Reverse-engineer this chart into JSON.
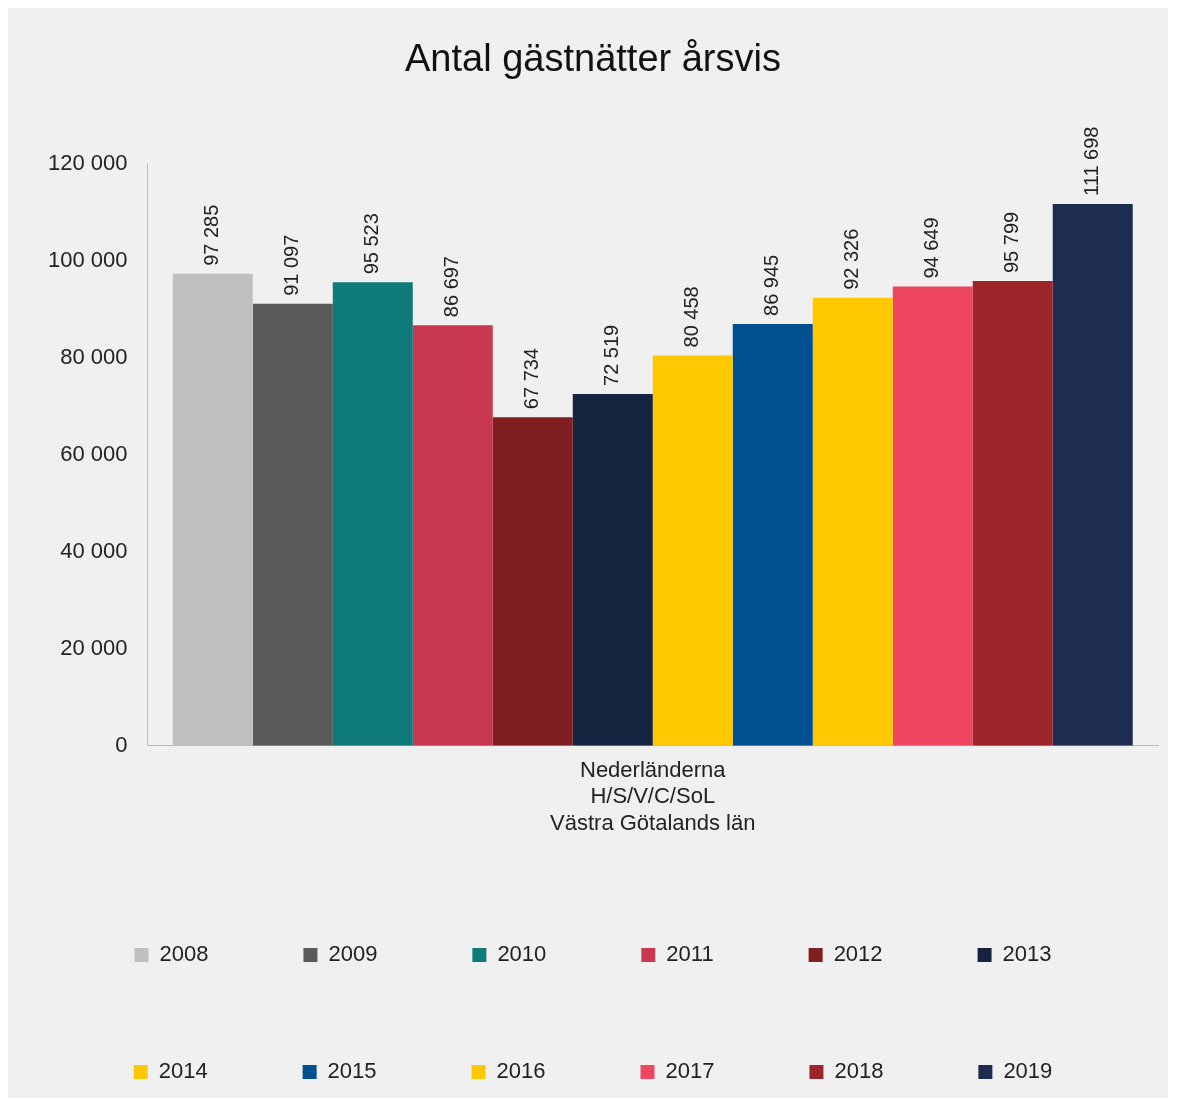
{
  "chart_data": {
    "type": "bar",
    "title": "Antal gästnätter årsvis",
    "categories": [
      "Nederländerna\nH/S/V/C/SoL\nVästra Götalands län"
    ],
    "series": [
      {
        "name": "2008",
        "color": "#c0c0c0",
        "values": [
          97285
        ],
        "value_labels": [
          "97 285"
        ]
      },
      {
        "name": "2009",
        "color": "#5a5a5a",
        "values": [
          91097
        ],
        "value_labels": [
          "91 097"
        ]
      },
      {
        "name": "2010",
        "color": "#0f7a7a",
        "values": [
          95523
        ],
        "value_labels": [
          "95 523"
        ]
      },
      {
        "name": "2011",
        "color": "#c8384e",
        "values": [
          86697
        ],
        "value_labels": [
          "86 697"
        ]
      },
      {
        "name": "2012",
        "color": "#7f1f20",
        "values": [
          67734
        ],
        "value_labels": [
          "67 734"
        ]
      },
      {
        "name": "2013",
        "color": "#16243f",
        "values": [
          72519
        ],
        "value_labels": [
          "72 519"
        ]
      },
      {
        "name": "2014",
        "color": "#ffc800",
        "values": [
          80458
        ],
        "value_labels": [
          "80 458"
        ]
      },
      {
        "name": "2015",
        "color": "#00508f",
        "values": [
          86945
        ],
        "value_labels": [
          "86 945"
        ]
      },
      {
        "name": "2016",
        "color": "#ffc800",
        "values": [
          92326
        ],
        "value_labels": [
          "92 326"
        ]
      },
      {
        "name": "2017",
        "color": "#ee4560",
        "values": [
          94649
        ],
        "value_labels": [
          "94 649"
        ]
      },
      {
        "name": "2018",
        "color": "#9b2528",
        "values": [
          95799
        ],
        "value_labels": [
          "95 799"
        ]
      },
      {
        "name": "2019",
        "color": "#1c2d4f",
        "values": [
          111698
        ],
        "value_labels": [
          "111 698"
        ]
      }
    ],
    "ylim": [
      0,
      120000
    ],
    "yticks": [
      0,
      {
        "value": 20000,
        "label": "20 000"
      },
      {
        "value": 40000,
        "label": "40 000"
      },
      {
        "value": 60000,
        "label": "60 000"
      },
      {
        "value": 80000,
        "label": "80 000"
      },
      {
        "value": 100000,
        "label": "100 000"
      },
      {
        "value": 120000,
        "label": "120 000"
      }
    ],
    "grid": false,
    "legend": "bottom"
  }
}
